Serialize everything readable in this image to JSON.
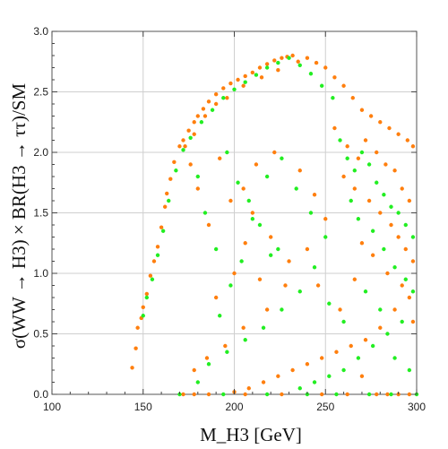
{
  "chart_data": {
    "type": "scatter",
    "xlabel": "M_H3 [GeV]",
    "ylabel": "σ(WW → H3) × BR(H3 → ττ)/SM",
    "xlim": [
      100,
      300
    ],
    "ylim": [
      0,
      3.0
    ],
    "x_ticks": [
      "100",
      "150",
      "200",
      "250",
      "300"
    ],
    "y_ticks": [
      "0.0",
      "0.5",
      "1.0",
      "1.5",
      "2.0",
      "2.5",
      "3.0"
    ],
    "grid": true,
    "legend": "none",
    "series": [
      {
        "color": "#ff7f0e",
        "points": [
          [
            144,
            0.22
          ],
          [
            146,
            0.38
          ],
          [
            147,
            0.55
          ],
          [
            149,
            0.63
          ],
          [
            150,
            0.72
          ],
          [
            152,
            0.83
          ],
          [
            154,
            0.98
          ],
          [
            156,
            1.1
          ],
          [
            158,
            1.22
          ],
          [
            160,
            1.38
          ],
          [
            162,
            1.55
          ],
          [
            163,
            1.66
          ],
          [
            165,
            1.78
          ],
          [
            167,
            1.92
          ],
          [
            170,
            2.05
          ],
          [
            172,
            2.1
          ],
          [
            175,
            2.18
          ],
          [
            178,
            2.25
          ],
          [
            180,
            2.3
          ],
          [
            183,
            2.36
          ],
          [
            186,
            2.42
          ],
          [
            190,
            2.48
          ],
          [
            194,
            2.53
          ],
          [
            198,
            2.57
          ],
          [
            202,
            2.6
          ],
          [
            206,
            2.63
          ],
          [
            210,
            2.66
          ],
          [
            214,
            2.7
          ],
          [
            218,
            2.73
          ],
          [
            222,
            2.76
          ],
          [
            226,
            2.78
          ],
          [
            229,
            2.79
          ],
          [
            232,
            2.8
          ],
          [
            173,
            2.05
          ],
          [
            178,
            2.15
          ],
          [
            184,
            2.3
          ],
          [
            190,
            2.4
          ],
          [
            196,
            2.45
          ],
          [
            205,
            2.55
          ],
          [
            215,
            2.62
          ],
          [
            224,
            2.68
          ],
          [
            235,
            2.75
          ],
          [
            240,
            2.78
          ],
          [
            245,
            2.74
          ],
          [
            250,
            2.7
          ],
          [
            255,
            2.62
          ],
          [
            260,
            2.55
          ],
          [
            265,
            2.45
          ],
          [
            270,
            2.35
          ],
          [
            275,
            2.3
          ],
          [
            280,
            2.25
          ],
          [
            285,
            2.2
          ],
          [
            290,
            2.15
          ],
          [
            295,
            2.1
          ],
          [
            298,
            2.05
          ],
          [
            255,
            2.2
          ],
          [
            262,
            2.05
          ],
          [
            268,
            1.95
          ],
          [
            272,
            2.1
          ],
          [
            278,
            2.0
          ],
          [
            283,
            1.9
          ],
          [
            288,
            1.85
          ],
          [
            292,
            1.7
          ],
          [
            296,
            1.6
          ],
          [
            260,
            1.8
          ],
          [
            266,
            1.7
          ],
          [
            274,
            1.6
          ],
          [
            280,
            1.5
          ],
          [
            286,
            1.4
          ],
          [
            290,
            1.3
          ],
          [
            294,
            1.2
          ],
          [
            298,
            1.1
          ],
          [
            270,
            1.25
          ],
          [
            276,
            1.15
          ],
          [
            284,
            1.0
          ],
          [
            292,
            0.9
          ],
          [
            296,
            0.8
          ],
          [
            298,
            0.6
          ],
          [
            288,
            0.7
          ],
          [
            280,
            0.55
          ],
          [
            272,
            0.45
          ],
          [
            264,
            0.4
          ],
          [
            256,
            0.35
          ],
          [
            248,
            0.3
          ],
          [
            240,
            0.25
          ],
          [
            232,
            0.2
          ],
          [
            224,
            0.15
          ],
          [
            216,
            0.1
          ],
          [
            208,
            0.05
          ],
          [
            200,
            0.02
          ],
          [
            230,
            1.1
          ],
          [
            220,
            1.3
          ],
          [
            210,
            1.5
          ],
          [
            205,
            1.7
          ],
          [
            212,
            1.9
          ],
          [
            222,
            2.0
          ],
          [
            236,
            1.85
          ],
          [
            244,
            1.65
          ],
          [
            250,
            1.45
          ],
          [
            240,
            1.2
          ],
          [
            228,
            0.9
          ],
          [
            218,
            0.7
          ],
          [
            205,
            0.55
          ],
          [
            195,
            0.4
          ],
          [
            185,
            0.3
          ],
          [
            178,
            0.2
          ],
          [
            190,
            0.8
          ],
          [
            200,
            1.0
          ],
          [
            186,
            1.4
          ],
          [
            180,
            1.7
          ],
          [
            176,
            1.9
          ],
          [
            192,
            1.95
          ],
          [
            198,
            1.6
          ],
          [
            206,
            1.25
          ],
          [
            214,
            0.95
          ],
          [
            246,
            0.9
          ],
          [
            258,
            0.7
          ],
          [
            266,
            0.95
          ],
          [
            270,
            0.15
          ],
          [
            278,
            0.0
          ],
          [
            284,
            0.0
          ],
          [
            290,
            0.0
          ],
          [
            172,
            0.0
          ],
          [
            178,
            0.0
          ],
          [
            186,
            0.0
          ],
          [
            206,
            0.0
          ],
          [
            226,
            0.0
          ],
          [
            248,
            0.0
          ],
          [
            262,
            0.0
          ],
          [
            296,
            0.0
          ]
        ]
      },
      {
        "color": "#22ee22",
        "points": [
          [
            150,
            0.65
          ],
          [
            152,
            0.8
          ],
          [
            155,
            0.95
          ],
          [
            158,
            1.15
          ],
          [
            161,
            1.35
          ],
          [
            164,
            1.6
          ],
          [
            168,
            1.85
          ],
          [
            172,
            2.02
          ],
          [
            176,
            2.12
          ],
          [
            182,
            2.25
          ],
          [
            188,
            2.35
          ],
          [
            194,
            2.45
          ],
          [
            200,
            2.52
          ],
          [
            206,
            2.58
          ],
          [
            212,
            2.64
          ],
          [
            218,
            2.7
          ],
          [
            224,
            2.74
          ],
          [
            230,
            2.78
          ],
          [
            236,
            2.72
          ],
          [
            242,
            2.65
          ],
          [
            248,
            2.55
          ],
          [
            254,
            2.45
          ],
          [
            258,
            2.1
          ],
          [
            262,
            1.95
          ],
          [
            266,
            1.85
          ],
          [
            270,
            2.0
          ],
          [
            274,
            1.9
          ],
          [
            278,
            1.75
          ],
          [
            282,
            1.65
          ],
          [
            286,
            1.55
          ],
          [
            290,
            1.5
          ],
          [
            294,
            1.4
          ],
          [
            298,
            1.3
          ],
          [
            264,
            1.6
          ],
          [
            268,
            1.45
          ],
          [
            276,
            1.35
          ],
          [
            282,
            1.2
          ],
          [
            288,
            1.05
          ],
          [
            294,
            0.95
          ],
          [
            298,
            0.85
          ],
          [
            292,
            0.6
          ],
          [
            284,
            0.5
          ],
          [
            276,
            0.4
          ],
          [
            268,
            0.3
          ],
          [
            260,
            0.2
          ],
          [
            252,
            0.15
          ],
          [
            244,
            0.1
          ],
          [
            236,
            0.05
          ],
          [
            224,
            1.2
          ],
          [
            214,
            1.4
          ],
          [
            208,
            1.6
          ],
          [
            218,
            1.8
          ],
          [
            226,
            1.95
          ],
          [
            234,
            1.7
          ],
          [
            242,
            1.5
          ],
          [
            250,
            1.3
          ],
          [
            244,
            1.05
          ],
          [
            236,
            0.85
          ],
          [
            226,
            0.7
          ],
          [
            216,
            0.55
          ],
          [
            206,
            0.45
          ],
          [
            196,
            0.35
          ],
          [
            186,
            0.25
          ],
          [
            180,
            0.1
          ],
          [
            192,
            0.65
          ],
          [
            198,
            0.9
          ],
          [
            204,
            1.1
          ],
          [
            190,
            1.2
          ],
          [
            184,
            1.5
          ],
          [
            180,
            1.8
          ],
          [
            196,
            2.0
          ],
          [
            202,
            1.75
          ],
          [
            210,
            1.45
          ],
          [
            220,
            1.15
          ],
          [
            252,
            0.75
          ],
          [
            260,
            0.6
          ],
          [
            272,
            0.85
          ],
          [
            280,
            0.7
          ],
          [
            288,
            0.3
          ],
          [
            296,
            0.2
          ],
          [
            170,
            0.0
          ],
          [
            194,
            0.0
          ],
          [
            218,
            0.0
          ],
          [
            240,
            0.0
          ],
          [
            256,
            0.0
          ],
          [
            274,
            0.0
          ],
          [
            286,
            0.0
          ],
          [
            300,
            0.0
          ]
        ]
      }
    ]
  }
}
